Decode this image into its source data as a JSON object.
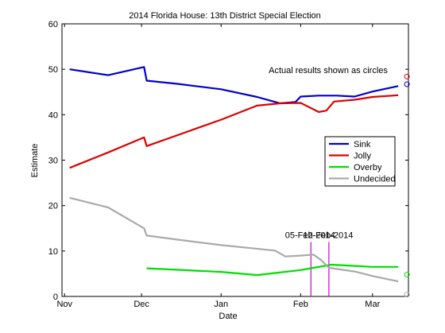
{
  "chart_data": {
    "type": "line",
    "title": "2014 Florida House: 13th District Special Election",
    "xlabel": "Date",
    "ylabel": "Estimate",
    "ylim": [
      0,
      60
    ],
    "yticks": [
      0,
      10,
      20,
      30,
      40,
      50,
      60
    ],
    "xlim": [
      "2013-10-31",
      "2014-03-15"
    ],
    "xticks": [
      {
        "date": "2013-11-01",
        "label": "Nov"
      },
      {
        "date": "2013-12-01",
        "label": "Dec"
      },
      {
        "date": "2014-01-01",
        "label": "Jan"
      },
      {
        "date": "2014-02-01",
        "label": "Feb"
      },
      {
        "date": "2014-03-01",
        "label": "Mar"
      }
    ],
    "grid": false,
    "legend_position": "right",
    "annotation": "Actual results shown as circles",
    "series": [
      {
        "name": "Sink",
        "color": "#0000cc",
        "points": [
          [
            "2013-11-03",
            50.0
          ],
          [
            "2013-11-18",
            48.7
          ],
          [
            "2013-12-02",
            50.5
          ],
          [
            "2013-12-03",
            47.5
          ],
          [
            "2013-12-15",
            46.8
          ],
          [
            "2014-01-01",
            45.6
          ],
          [
            "2014-01-15",
            43.9
          ],
          [
            "2014-01-24",
            42.5
          ],
          [
            "2014-01-30",
            42.8
          ],
          [
            "2014-02-01",
            44.0
          ],
          [
            "2014-02-08",
            44.2
          ],
          [
            "2014-02-15",
            44.2
          ],
          [
            "2014-02-22",
            44.0
          ],
          [
            "2014-03-01",
            45.1
          ],
          [
            "2014-03-11",
            46.3
          ]
        ],
        "actual": 46.7
      },
      {
        "name": "Jolly",
        "color": "#dd0000",
        "points": [
          [
            "2013-11-03",
            28.3
          ],
          [
            "2013-11-18",
            31.7
          ],
          [
            "2013-12-02",
            35.0
          ],
          [
            "2013-12-03",
            33.1
          ],
          [
            "2013-12-15",
            35.5
          ],
          [
            "2014-01-01",
            38.9
          ],
          [
            "2014-01-15",
            42.0
          ],
          [
            "2014-01-24",
            42.5
          ],
          [
            "2014-02-01",
            42.6
          ],
          [
            "2014-02-08",
            40.6
          ],
          [
            "2014-02-11",
            40.9
          ],
          [
            "2014-02-14",
            42.9
          ],
          [
            "2014-02-22",
            43.3
          ],
          [
            "2014-03-01",
            43.9
          ],
          [
            "2014-03-11",
            44.3
          ]
        ],
        "actual": 48.4
      },
      {
        "name": "Overby",
        "color": "#00dd00",
        "points": [
          [
            "2013-12-03",
            6.2
          ],
          [
            "2014-01-01",
            5.4
          ],
          [
            "2014-01-15",
            4.7
          ],
          [
            "2014-02-01",
            5.8
          ],
          [
            "2014-02-13",
            7.0
          ],
          [
            "2014-03-01",
            6.5
          ],
          [
            "2014-03-11",
            6.5
          ]
        ],
        "actual": 4.8
      },
      {
        "name": "Undecided",
        "color": "#aaaaaa",
        "points": [
          [
            "2013-11-03",
            21.7
          ],
          [
            "2013-11-18",
            19.6
          ],
          [
            "2013-12-02",
            15.0
          ],
          [
            "2013-12-03",
            13.4
          ],
          [
            "2013-12-15",
            12.5
          ],
          [
            "2014-01-01",
            11.3
          ],
          [
            "2014-01-22",
            10.1
          ],
          [
            "2014-01-26",
            8.8
          ],
          [
            "2014-02-01",
            9.0
          ],
          [
            "2014-02-06",
            9.2
          ],
          [
            "2014-02-09",
            8.0
          ],
          [
            "2014-02-12",
            6.3
          ],
          [
            "2014-02-22",
            5.5
          ],
          [
            "2014-03-01",
            4.5
          ],
          [
            "2014-03-11",
            3.3
          ]
        ],
        "actual": 0.4
      }
    ],
    "actual_results_date": "2014-03-11",
    "markers": [
      {
        "date": "2014-02-05",
        "label": "05-Feb-2014",
        "color": "#cc00cc",
        "y_top": 12
      },
      {
        "date": "2014-02-12",
        "label": "12-Feb-2014",
        "color": "#cc00cc",
        "y_top": 12
      }
    ]
  }
}
